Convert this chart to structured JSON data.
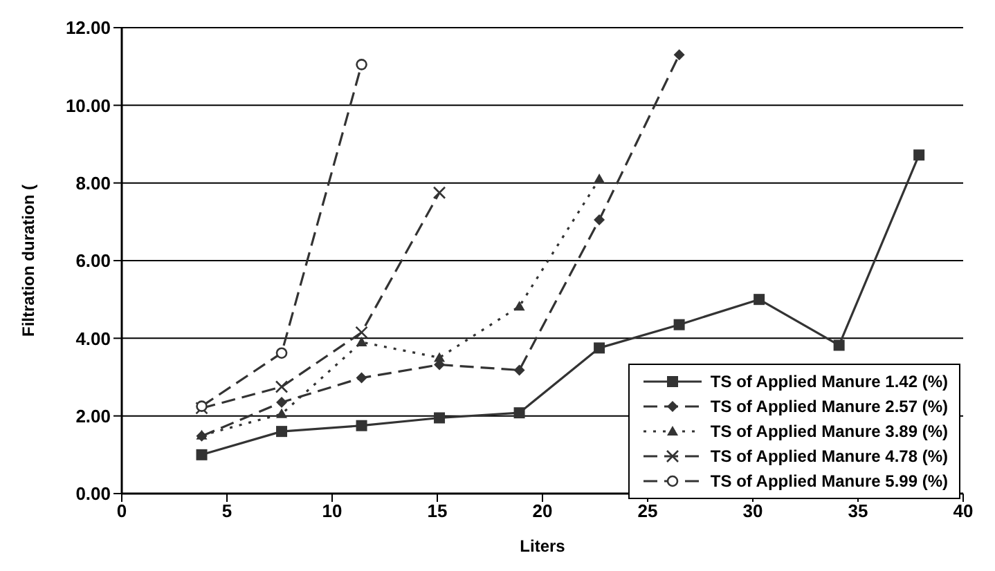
{
  "chart_data": {
    "type": "line",
    "xlabel": "Liters",
    "ylabel": "Filtration duration (",
    "xlim": [
      0,
      40
    ],
    "xticks": [
      0,
      5,
      10,
      15,
      20,
      25,
      30,
      35,
      40
    ],
    "ylim": [
      0,
      12
    ],
    "yticks": [
      {
        "value": 0,
        "label": "0.00"
      },
      {
        "value": 2,
        "label": "2.00"
      },
      {
        "value": 4,
        "label": "4.00"
      },
      {
        "value": 6,
        "label": "6.00"
      },
      {
        "value": 8,
        "label": "8.00"
      },
      {
        "value": 10,
        "label": "10.00"
      },
      {
        "value": 12,
        "label": "12.00"
      }
    ],
    "grid": "y",
    "legend": "bottom right",
    "series": [
      {
        "name": "TS of Applied Manure 1.42 (%)",
        "color": "#333333",
        "marker": "square",
        "line_style": "solid",
        "x": [
          3.8,
          7.6,
          11.4,
          15.1,
          18.9,
          22.7,
          26.5,
          30.3,
          34.1,
          37.9
        ],
        "values": [
          1.0,
          1.6,
          1.75,
          1.95,
          2.08,
          3.75,
          4.35,
          5.0,
          3.82,
          8.72
        ]
      },
      {
        "name": "TS of Applied Manure 2.57 (%)",
        "color": "#333333",
        "marker": "diamond",
        "line_style": "dashed",
        "x": [
          3.8,
          7.6,
          11.4,
          15.1,
          18.9,
          22.7,
          26.5
        ],
        "values": [
          1.48,
          2.35,
          2.98,
          3.32,
          3.18,
          7.05,
          11.3
        ]
      },
      {
        "name": "TS of Applied Manure 3.89 (%)",
        "color": "#333333",
        "marker": "triangle",
        "line_style": "dotted",
        "x": [
          3.8,
          7.6,
          11.4,
          15.1,
          18.9,
          22.7
        ],
        "values": [
          1.5,
          2.05,
          3.9,
          3.5,
          4.82,
          8.1
        ]
      },
      {
        "name": "TS of Applied Manure 4.78 (%)",
        "color": "#333333",
        "marker": "cross",
        "line_style": "dashed",
        "x": [
          3.8,
          7.6,
          11.4,
          15.1
        ],
        "values": [
          2.2,
          2.75,
          4.15,
          7.75
        ]
      },
      {
        "name": "TS of Applied Manure 5.99 (%)",
        "color": "#333333",
        "marker": "circle",
        "line_style": "dashed",
        "x": [
          3.8,
          7.6,
          11.4
        ],
        "values": [
          2.25,
          3.62,
          11.05
        ]
      }
    ]
  }
}
